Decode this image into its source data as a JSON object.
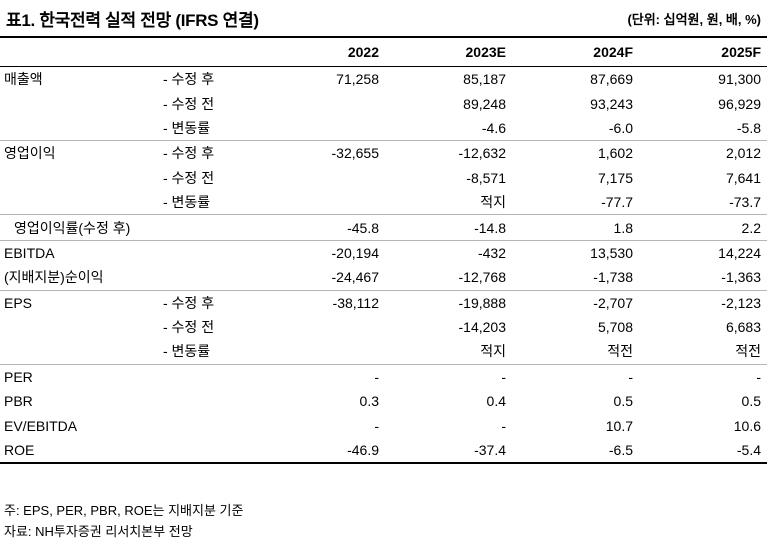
{
  "title": "표1. 한국전력 실적 전망 (IFRS 연결)",
  "unit": "(단위: 십억원, 원, 배, %)",
  "columns": [
    "2022",
    "2023E",
    "2024F",
    "2025F"
  ],
  "rows": [
    {
      "label": "매출액",
      "sub": "- 수정 후",
      "values": [
        "71,258",
        "85,187",
        "87,669",
        "91,300"
      ]
    },
    {
      "label": "",
      "sub": "- 수정 전",
      "values": [
        "",
        "89,248",
        "93,243",
        "96,929"
      ]
    },
    {
      "label": "",
      "sub": "- 변동률",
      "values": [
        "",
        "-4.6",
        "-6.0",
        "-5.8"
      ]
    },
    {
      "label": "영업이익",
      "sub": "- 수정 후",
      "values": [
        "-32,655",
        "-12,632",
        "1,602",
        "2,012"
      ]
    },
    {
      "label": "",
      "sub": "- 수정 전",
      "values": [
        "",
        "-8,571",
        "7,175",
        "7,641"
      ]
    },
    {
      "label": "",
      "sub": "- 변동률",
      "values": [
        "",
        "적지",
        "-77.7",
        "-73.7"
      ]
    },
    {
      "label": "영업이익률(수정 후)",
      "sub": "",
      "values": [
        "-45.8",
        "-14.8",
        "1.8",
        "2.2"
      ]
    },
    {
      "label": "EBITDA",
      "sub": "",
      "values": [
        "-20,194",
        "-432",
        "13,530",
        "14,224"
      ]
    },
    {
      "label": "(지배지분)순이익",
      "sub": "",
      "values": [
        "-24,467",
        "-12,768",
        "-1,738",
        "-1,363"
      ]
    },
    {
      "label": "EPS",
      "sub": "- 수정 후",
      "values": [
        "-38,112",
        "-19,888",
        "-2,707",
        "-2,123"
      ]
    },
    {
      "label": "",
      "sub": "- 수정 전",
      "values": [
        "",
        "-14,203",
        "5,708",
        "6,683"
      ]
    },
    {
      "label": "",
      "sub": "- 변동률",
      "values": [
        "",
        "적지",
        "적전",
        "적전"
      ]
    },
    {
      "label": "PER",
      "sub": "",
      "values": [
        "-",
        "-",
        "-",
        "-"
      ]
    },
    {
      "label": "PBR",
      "sub": "",
      "values": [
        "0.3",
        "0.4",
        "0.5",
        "0.5"
      ]
    },
    {
      "label": "EV/EBITDA",
      "sub": "",
      "values": [
        "-",
        "-",
        "10.7",
        "10.6"
      ]
    },
    {
      "label": "ROE",
      "sub": "",
      "values": [
        "-46.9",
        "-37.4",
        "-6.5",
        "-5.4"
      ]
    }
  ],
  "notes": [
    "주: EPS, PER, PBR, ROE는 지배지분 기준",
    "자료: NH투자증권 리서치본부 전망"
  ]
}
